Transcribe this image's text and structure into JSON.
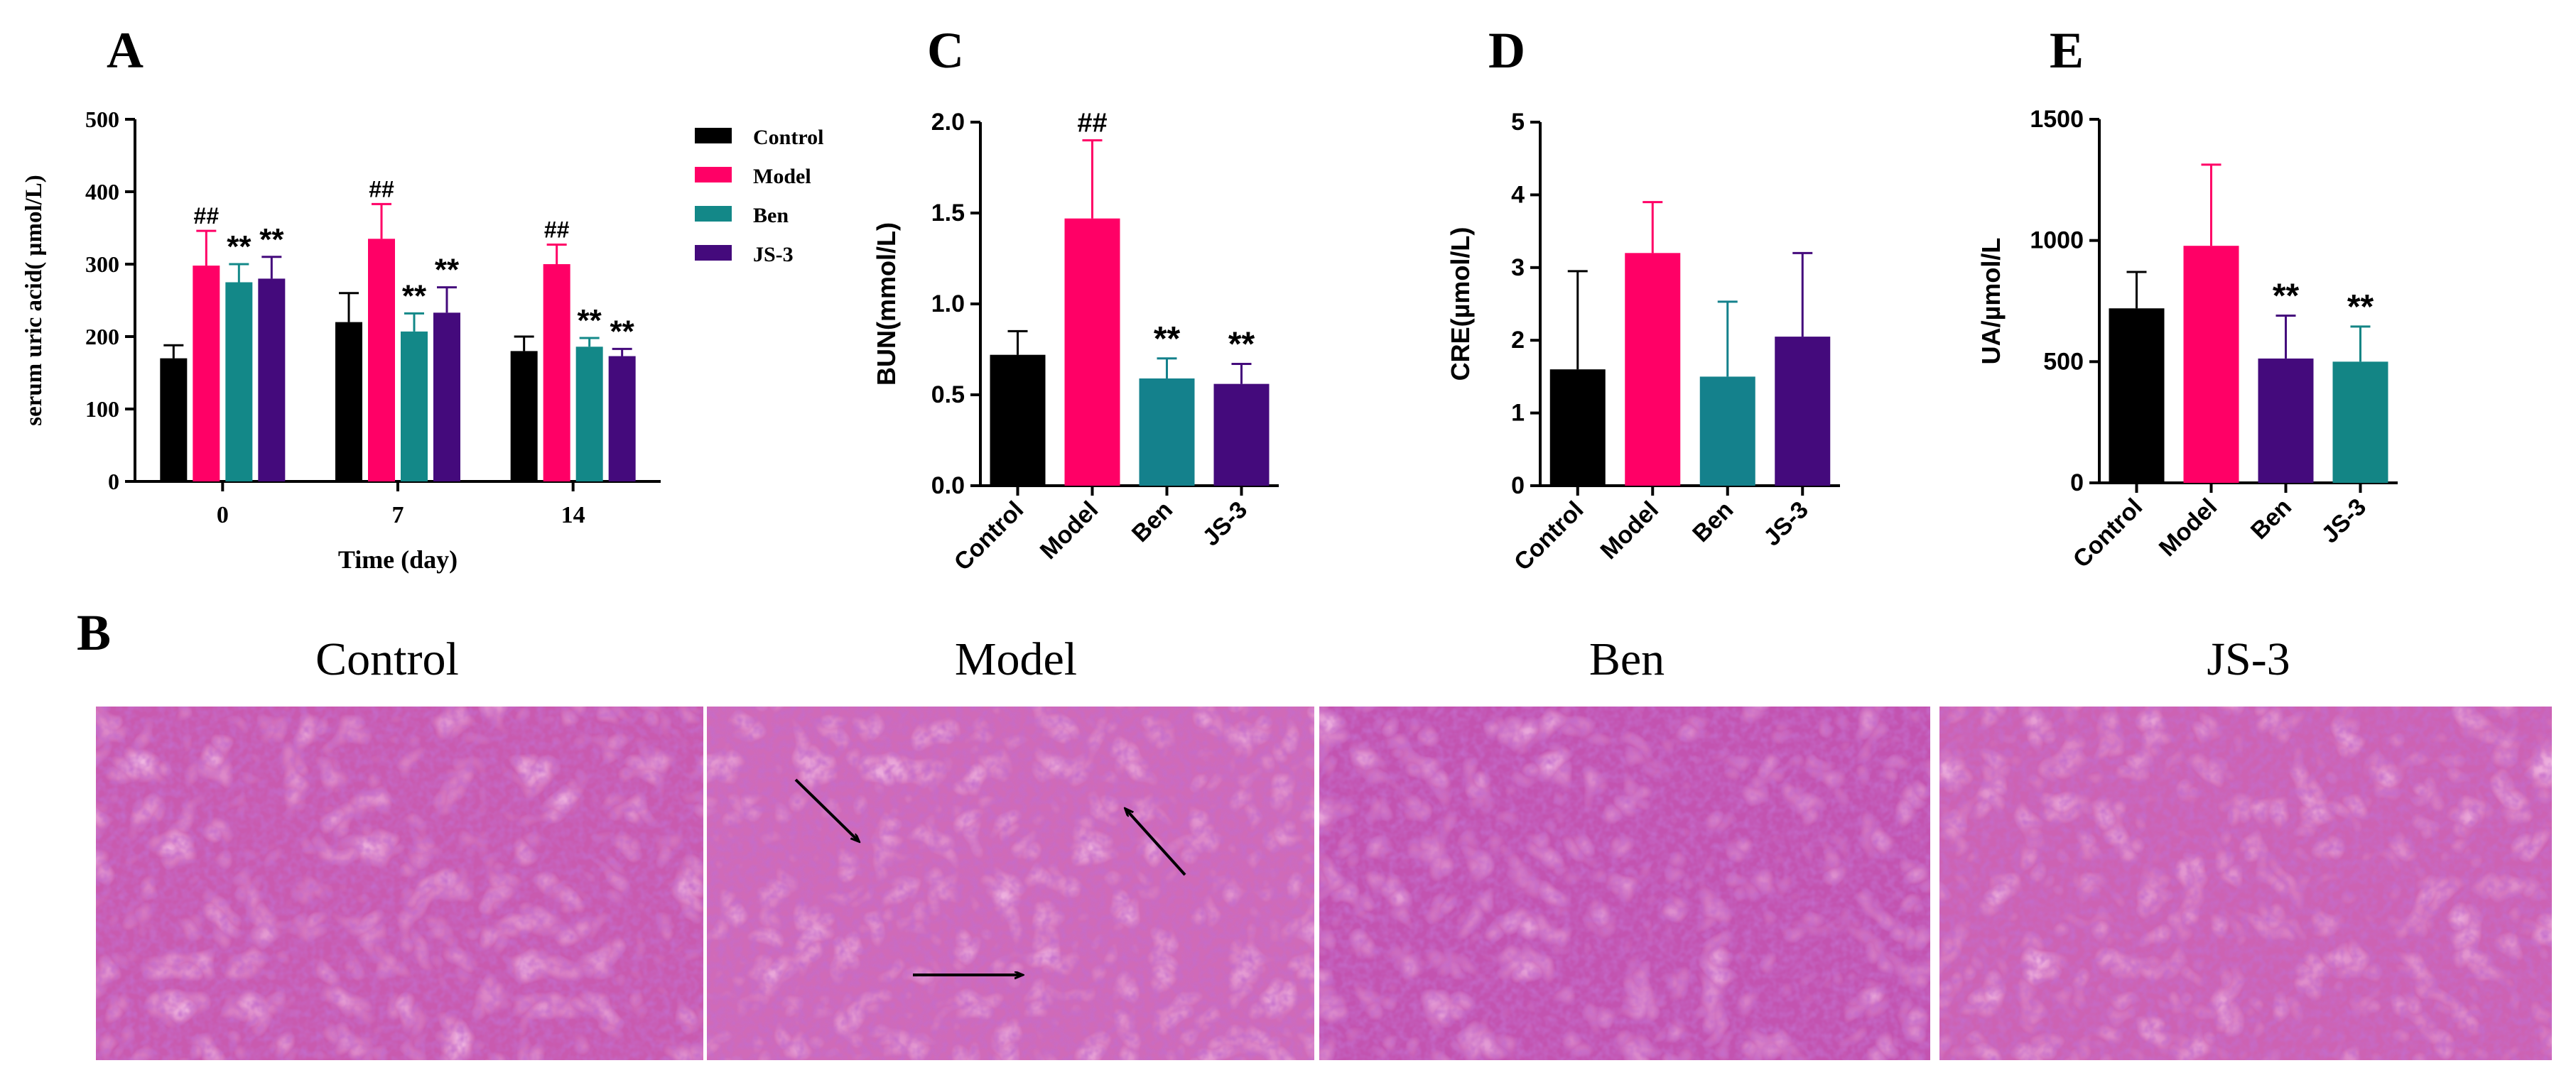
{
  "colors": {
    "Control": "#000000",
    "Model": "#ff0066",
    "Ben_A": "#138888",
    "Ben": "#14818c",
    "JS-3": "#440a7c",
    "JS-3_E": "#138585",
    "Ben_E": "#440a7c"
  },
  "panel_letters": {
    "A": "A",
    "B": "B",
    "C": "C",
    "D": "D",
    "E": "E"
  },
  "legend": [
    "Control",
    "Model",
    "Ben",
    "JS-3"
  ],
  "histology": {
    "titles": [
      "Control",
      "Model",
      "Ben",
      "JS-3"
    ]
  },
  "chart_data": [
    {
      "id": "A",
      "type": "bar",
      "xlabel": "Time (day)",
      "ylabel": "serum uric acid( µmol/L)",
      "categories": [
        "0",
        "7",
        "14"
      ],
      "ylim": [
        0,
        500
      ],
      "yticks": [
        "0",
        "100",
        "200",
        "300",
        "400",
        "500"
      ],
      "series": [
        {
          "name": "Control",
          "values": [
            170,
            220,
            180
          ],
          "errors": [
            18,
            40,
            20
          ],
          "marks": [
            "",
            "",
            ""
          ]
        },
        {
          "name": "Model",
          "values": [
            298,
            335,
            300
          ],
          "errors": [
            48,
            48,
            27
          ],
          "marks": [
            "##",
            "##",
            "##"
          ]
        },
        {
          "name": "Ben",
          "values": [
            275,
            207,
            186
          ],
          "errors": [
            25,
            25,
            12
          ],
          "marks": [
            "**",
            "**",
            "**"
          ]
        },
        {
          "name": "JS-3",
          "values": [
            280,
            233,
            173
          ],
          "errors": [
            30,
            35,
            10
          ],
          "marks": [
            "**",
            "**",
            "**"
          ]
        }
      ]
    },
    {
      "id": "C",
      "type": "bar",
      "ylabel": "BUN(mmol/L)",
      "categories": [
        "Control",
        "Model",
        "Ben",
        "JS-3"
      ],
      "values": [
        0.72,
        1.47,
        0.59,
        0.56
      ],
      "errors": [
        0.13,
        0.43,
        0.11,
        0.11
      ],
      "marks": [
        "",
        "##",
        "**",
        "**"
      ],
      "ylim": [
        0,
        2.0
      ],
      "yticks": [
        "0.0",
        "0.5",
        "1.0",
        "1.5",
        "2.0"
      ]
    },
    {
      "id": "D",
      "type": "bar",
      "ylabel": "CRE(µmol/L)",
      "categories": [
        "Control",
        "Model",
        "Ben",
        "JS-3"
      ],
      "values": [
        1.6,
        3.2,
        1.5,
        2.05
      ],
      "errors": [
        1.35,
        0.7,
        1.03,
        1.15
      ],
      "marks": [
        "",
        "",
        "",
        ""
      ],
      "ylim": [
        0,
        5
      ],
      "yticks": [
        "0",
        "1",
        "2",
        "3",
        "4",
        "5"
      ]
    },
    {
      "id": "E",
      "type": "bar",
      "ylabel": "UA/µmol/L",
      "categories": [
        "Control",
        "Model",
        "Ben",
        "JS-3"
      ],
      "values": [
        720,
        978,
        513,
        500
      ],
      "errors": [
        150,
        335,
        177,
        145
      ],
      "marks": [
        "",
        "",
        "**",
        "**"
      ],
      "ylim": [
        0,
        1500
      ],
      "yticks": [
        "0",
        "500",
        "1000",
        "1500"
      ]
    }
  ]
}
